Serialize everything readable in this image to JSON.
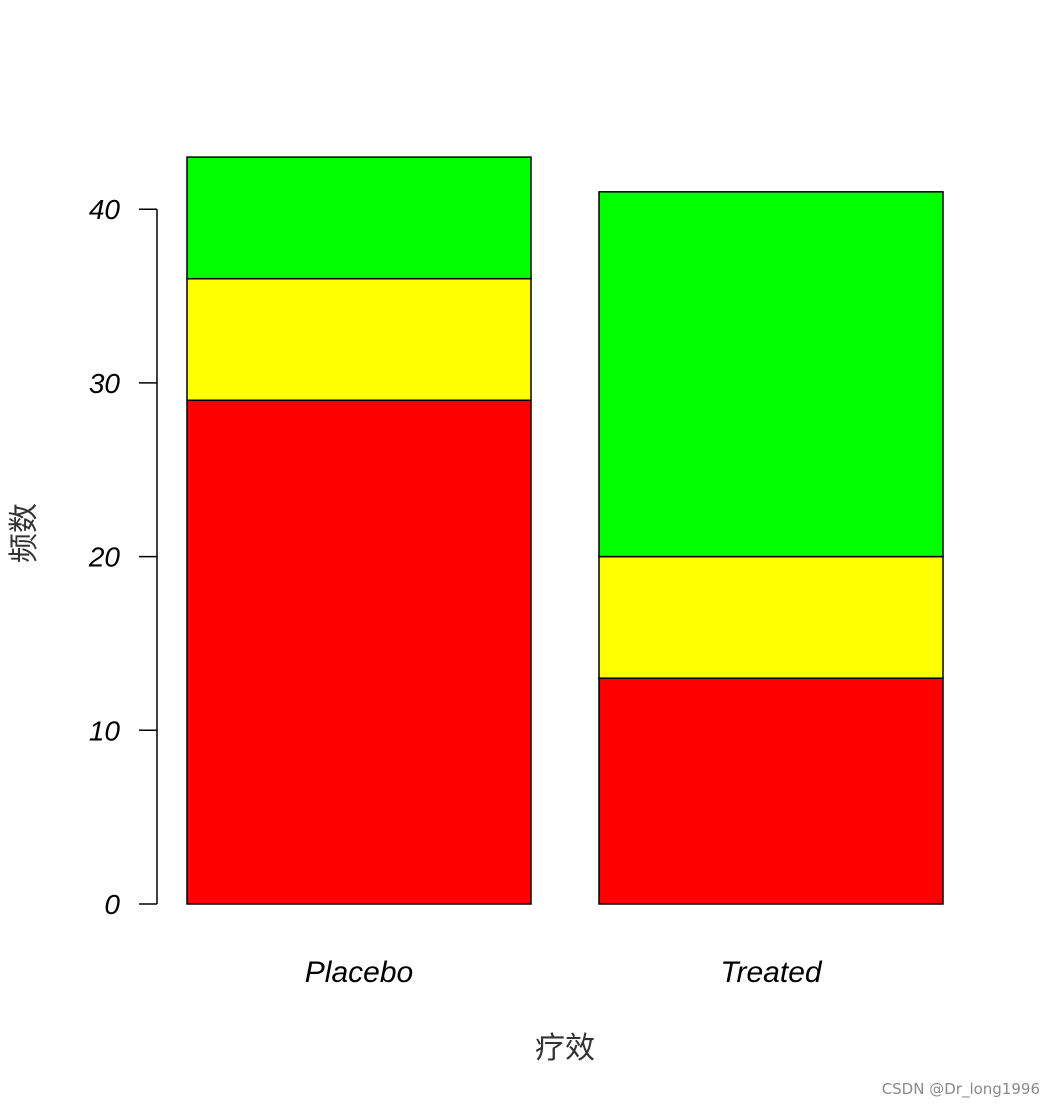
{
  "chart_data": {
    "type": "bar",
    "stacked": true,
    "categories": [
      "Placebo",
      "Treated"
    ],
    "series": [
      {
        "values": [
          29,
          13
        ],
        "color": "#ff0000"
      },
      {
        "values": [
          7,
          7
        ],
        "color": "#ffff00"
      },
      {
        "values": [
          7,
          21
        ],
        "color": "#00ff00"
      }
    ],
    "xlabel": "疗效",
    "ylabel": "频数",
    "ylim": [
      0,
      43
    ],
    "yticks": [
      0,
      10,
      20,
      30,
      40
    ],
    "grid": false,
    "legend": "none"
  },
  "watermark": "CSDN @Dr_long1996"
}
